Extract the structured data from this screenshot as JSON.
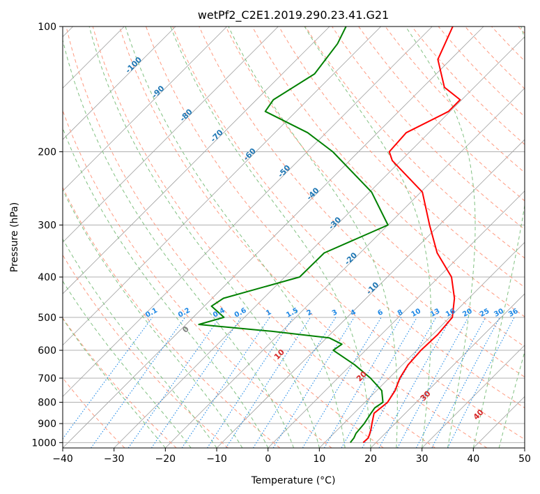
{
  "chart_data": {
    "type": "skew-t log-p diagram",
    "title": "wetPf2_C2E1.2019.290.23.41.G21",
    "xlabel": "Temperature (°C)",
    "ylabel": "Pressure (hPa)",
    "xlim": [
      -40,
      50
    ],
    "ylim_hpa": [
      1030,
      100
    ],
    "y_scale": "log",
    "x_ticks": [
      -40,
      -30,
      -20,
      -10,
      0,
      10,
      20,
      30,
      40,
      50
    ],
    "x_tick_labels": [
      "−40",
      "−30",
      "−20",
      "−10",
      "0",
      "10",
      "20",
      "30",
      "40",
      "50"
    ],
    "y_ticks": [
      1000,
      900,
      800,
      700,
      600,
      500,
      400,
      300,
      200,
      100
    ],
    "y_tick_labels": [
      "1000",
      "900",
      "800",
      "700",
      "600",
      "500",
      "400",
      "300",
      "200",
      "100"
    ],
    "grid": true,
    "colors": {
      "temperature": "#ff0000",
      "dewpoint": "#008000",
      "grid": "#b0b0b0",
      "isotherm": "#a0a0a0",
      "dry_adiabat": "#ff9a80",
      "moist_adiabat": "#80c080",
      "mixing_ratio": "#1e88e5",
      "isotherm_label": "#1f77b4",
      "adiabat_label": "#d62728",
      "zero_label": "#808080"
    },
    "series": [
      {
        "name": "Temperature",
        "points": [
          [
            1000,
            17.5
          ],
          [
            975,
            17.6
          ],
          [
            950,
            17.0
          ],
          [
            925,
            16.3
          ],
          [
            900,
            15.5
          ],
          [
            850,
            13.9
          ],
          [
            800,
            14.4
          ],
          [
            750,
            13.6
          ],
          [
            700,
            12.1
          ],
          [
            650,
            11.1
          ],
          [
            600,
            10.8
          ],
          [
            550,
            11.0
          ],
          [
            500,
            10.5
          ],
          [
            450,
            7.2
          ],
          [
            400,
            2.5
          ],
          [
            350,
            -5.0
          ],
          [
            300,
            -11.9
          ],
          [
            250,
            -19.7
          ],
          [
            210,
            -31.7
          ],
          [
            200,
            -34.0
          ],
          [
            180,
            -34.4
          ],
          [
            160,
            -30.3
          ],
          [
            150,
            -30.3
          ],
          [
            140,
            -35.8
          ],
          [
            120,
            -42.5
          ],
          [
            100,
            -46.0
          ]
        ]
      },
      {
        "name": "Dewpoint",
        "points": [
          [
            1000,
            15.0
          ],
          [
            975,
            14.8
          ],
          [
            950,
            14.3
          ],
          [
            900,
            14.0
          ],
          [
            850,
            13.3
          ],
          [
            825,
            13.0
          ],
          [
            800,
            13.5
          ],
          [
            750,
            11.0
          ],
          [
            700,
            6.4
          ],
          [
            650,
            0.7
          ],
          [
            600,
            -6.3
          ],
          [
            580,
            -5.8
          ],
          [
            560,
            -9.5
          ],
          [
            540,
            -22.0
          ],
          [
            520,
            -37.5
          ],
          [
            500,
            -34.0
          ],
          [
            470,
            -38.6
          ],
          [
            450,
            -37.8
          ],
          [
            400,
            -27.1
          ],
          [
            350,
            -27.0
          ],
          [
            300,
            -20.0
          ],
          [
            250,
            -29.6
          ],
          [
            200,
            -45.0
          ],
          [
            180,
            -53.6
          ],
          [
            160,
            -66.0
          ],
          [
            150,
            -66.7
          ],
          [
            130,
            -63.7
          ],
          [
            110,
            -65.1
          ],
          [
            100,
            -66.8
          ]
        ]
      }
    ],
    "isotherm_labels": [
      "-100",
      "-90",
      "-80",
      "-70",
      "-60",
      "-50",
      "-40",
      "-30",
      "-20",
      "-10"
    ],
    "mixing_ratio_labels": [
      "0.1",
      "0.2",
      "0.4",
      "0.6",
      "1",
      "1.5",
      "2",
      "3",
      "4",
      "6",
      "8",
      "10",
      "13",
      "16",
      "20",
      "25",
      "30",
      "36"
    ],
    "moist_adiabat_labels": [
      "0",
      "10",
      "20",
      "30",
      "40"
    ]
  }
}
